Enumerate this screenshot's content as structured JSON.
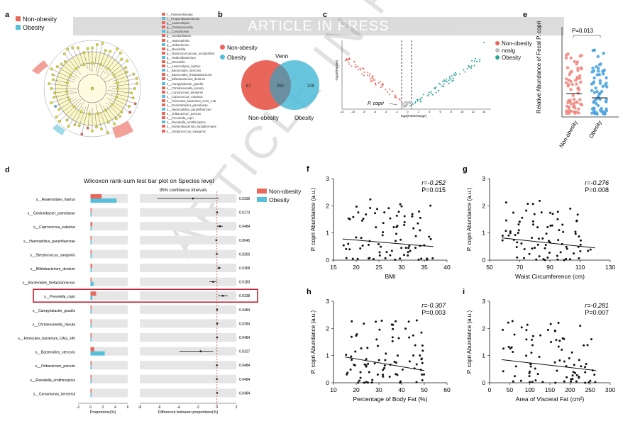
{
  "banner": "ARTICLE IN PRESS",
  "watermark": "ARTICLE IN PRESS",
  "colors": {
    "nonobesity": "#e8675a",
    "obesity": "#56bfd9",
    "box": "#c0162a"
  },
  "panel_a": {
    "letter": "a",
    "legend": [
      {
        "label": "Non-obesity"
      },
      {
        "label": "Obesity"
      }
    ],
    "taxa": [
      "f__Pasteurellaceae",
      "f__Propionibacteriaceae",
      "g__Anaerostipes",
      "g__Christensenella",
      "g__Comamonas",
      "g__Gordonibacter",
      "g__Haemophilus",
      "g__Oribacterium",
      "g__Raoultella",
      "g__Ruminococcaceae_unclassified",
      "g__Ruthenibacterium",
      "g__Weissella",
      "s__Anaerostipes_hadrus",
      "s__Bacteroides_stercoris",
      "s__Bacteroides_thetaiotaomicron",
      "s__Bifidobacterium_dentium",
      "s__Campylobacter_gracilis",
      "s__Christensenella_minuta",
      "s__Comamonas_kerstersii",
      "s__Coprococcus_eutactus",
      "s__Firmicutes_bacterium_CAG_145",
      "s__Gordonibacter_pamelaeae",
      "s__Haemophilus_parainfluenzae",
      "s__Oribacterium_parvum",
      "s__Prevotella_copri",
      "s__Raoultella_ornithinolytica",
      "s__Ruthenibacterium_lactatiformans",
      "s__Streptococcus_sanguinis"
    ]
  },
  "panel_b": {
    "letter": "b",
    "title": "Venn",
    "legend": [
      {
        "label": "Non-obesity"
      },
      {
        "label": "Obesity"
      }
    ],
    "counts": {
      "left": "67",
      "both": "252",
      "right": "109"
    },
    "labels": {
      "left": "Non-obesity",
      "right": "Obesity"
    }
  },
  "panel_c": {
    "letter": "c",
    "legend": [
      {
        "label": "Non-obesity"
      },
      {
        "label": "nosig"
      },
      {
        "label": "Obesity"
      }
    ],
    "xlabel": "log2(FoldChange)",
    "ylabel": "-log10(Pvalue)",
    "annotation": "P. copri",
    "xticks": [
      "-12",
      "-10",
      "-8",
      "-6",
      "-4",
      "-2",
      "0",
      "2",
      "4",
      "6",
      "8",
      "10",
      "12",
      "14"
    ]
  },
  "panel_e": {
    "letter": "e",
    "pvalue": "P=0.013",
    "ylabel": "Relative Abundance of Fecal P. copri",
    "groups": [
      "Non-obesity",
      "Obesity"
    ]
  },
  "panel_d": {
    "letter": "d",
    "title": "Wilcoxon rank-sum test bar plot on Species level",
    "ci_title": "95% confidence intervals",
    "legend": [
      {
        "label": "Non-obesity"
      },
      {
        "label": "Obesity"
      }
    ],
    "xlabel_left": "Proportions(%)",
    "xlabel_right": "Difference between proportions(%)",
    "left_ticks": [
      "-2",
      "0",
      "2",
      "4",
      "6"
    ],
    "right_ticks": [
      "-8",
      "-6",
      "-4",
      "-2",
      "0",
      "2"
    ],
    "rows": [
      {
        "name": "s__Anaerostipes_hadrus",
        "non": 1.8,
        "ob": 4.2,
        "diff": -2.5,
        "lo": -6.2,
        "hi": 0.2,
        "p": "0.0336"
      },
      {
        "name": "s__Gordonibacter_pamelaeae",
        "non": 0.02,
        "ob": 0.06,
        "diff": 0.0,
        "lo": -0.05,
        "hi": 0.05,
        "p": "0.0173"
      },
      {
        "name": "s__Coprococcus_eutactus",
        "non": 0.3,
        "ob": 0.02,
        "diff": 0.3,
        "lo": 0.0,
        "hi": 0.6,
        "p": "0.0484"
      },
      {
        "name": "s__Haemophilus_parainfluenzae",
        "non": 0.05,
        "ob": 0.12,
        "diff": -0.07,
        "lo": -0.15,
        "hi": 0.0,
        "p": "0.0045"
      },
      {
        "name": "s__Streptococcus_sanguinis",
        "non": 0.03,
        "ob": 0.05,
        "diff": -0.02,
        "lo": -0.04,
        "hi": 0.0,
        "p": "0.0269"
      },
      {
        "name": "s__Bifidobacterium_dentium",
        "non": 0.25,
        "ob": 0.02,
        "diff": 0.22,
        "lo": 0.05,
        "hi": 0.4,
        "p": "0.0368"
      },
      {
        "name": "s__Bacteroides_thetaiotaomicron",
        "non": 0.1,
        "ob": 0.5,
        "diff": -0.4,
        "lo": -0.8,
        "hi": -0.05,
        "p": "0.0183"
      },
      {
        "name": "s__Prevotella_copri",
        "non": 0.9,
        "ob": 0.3,
        "diff": 0.6,
        "lo": 0.1,
        "hi": 1.1,
        "p": "0.0338",
        "highlight": true
      },
      {
        "name": "s__Campylobacter_gracilis",
        "non": 0.02,
        "ob": 0.01,
        "diff": 0.01,
        "lo": 0.0,
        "hi": 0.02,
        "p": "0.0484"
      },
      {
        "name": "s__Christensenella_minuta",
        "non": 0.03,
        "ob": 0.01,
        "diff": 0.02,
        "lo": 0.0,
        "hi": 0.04,
        "p": "0.0284"
      },
      {
        "name": "s__Firmicutes_bacterium_CAG_145",
        "non": 0.02,
        "ob": 0.01,
        "diff": 0.01,
        "lo": 0.0,
        "hi": 0.02,
        "p": "0.0484"
      },
      {
        "name": "s__Bacteroides_stercoris",
        "non": 0.6,
        "ob": 2.3,
        "diff": -1.7,
        "lo": -3.9,
        "hi": -0.4,
        "p": "0.0327"
      },
      {
        "name": "s__Oribacterium_parvum",
        "non": 0.01,
        "ob": 0.02,
        "diff": -0.01,
        "lo": -0.02,
        "hi": 0.0,
        "p": "0.0484"
      },
      {
        "name": "s__Raoultella_ornithinolytica",
        "non": 0.01,
        "ob": 0.02,
        "diff": -0.01,
        "lo": -0.02,
        "hi": 0.0,
        "p": "0.0484"
      },
      {
        "name": "s__Comamonas_kerstersii",
        "non": 0.02,
        "ob": 0.01,
        "diff": 0.01,
        "lo": 0.0,
        "hi": 0.02,
        "p": "0.0484"
      }
    ]
  },
  "chart_data": [
    {
      "id": "f",
      "type": "scatter",
      "letter": "f",
      "xlabel": "BMI",
      "ylabel": "P. copri Abundance (a.u.)",
      "r": "r=-0.252",
      "p": "P=0.015",
      "xlim": [
        15,
        40
      ],
      "ylim": [
        0,
        3
      ],
      "xticks": [
        15,
        20,
        25,
        30,
        35,
        40
      ],
      "yticks": [
        0,
        1,
        2,
        3
      ],
      "fit": [
        [
          17,
          0.78
        ],
        [
          37,
          0.5
        ]
      ]
    },
    {
      "id": "g",
      "type": "scatter",
      "letter": "g",
      "xlabel": "Waist Circumference (cm)",
      "ylabel": "P. copri Abundance (a.u.)",
      "r": "r=-0.276",
      "p": "P=0.008",
      "xlim": [
        50,
        130
      ],
      "ylim": [
        0,
        3
      ],
      "xticks": [
        50,
        70,
        90,
        110,
        130
      ],
      "yticks": [
        0,
        1,
        2,
        3
      ],
      "fit": [
        [
          58,
          0.82
        ],
        [
          120,
          0.45
        ]
      ]
    },
    {
      "id": "h",
      "type": "scatter",
      "letter": "h",
      "xlabel": "Percentage of Body Fat (%)",
      "ylabel": "P. copri Abundance (a.u.)",
      "r": "r=-0.307",
      "p": "P=0.003",
      "xlim": [
        10,
        60
      ],
      "ylim": [
        0,
        3
      ],
      "xticks": [
        10,
        20,
        30,
        40,
        50,
        60
      ],
      "yticks": [
        0,
        1,
        2,
        3
      ],
      "fit": [
        [
          15,
          0.95
        ],
        [
          50,
          0.45
        ]
      ]
    },
    {
      "id": "i",
      "type": "scatter",
      "letter": "i",
      "xlabel": "Area of Visceral Fat (cm²)",
      "ylabel": "P. copri Abundance (a.u.)",
      "r": "r=-0.281",
      "p": "P=0.007",
      "xlim": [
        0,
        300
      ],
      "ylim": [
        0,
        3
      ],
      "xticks": [
        0,
        50,
        100,
        150,
        200,
        250,
        300
      ],
      "yticks": [
        0,
        1,
        2,
        3
      ],
      "fit": [
        [
          30,
          0.85
        ],
        [
          265,
          0.45
        ]
      ]
    }
  ]
}
